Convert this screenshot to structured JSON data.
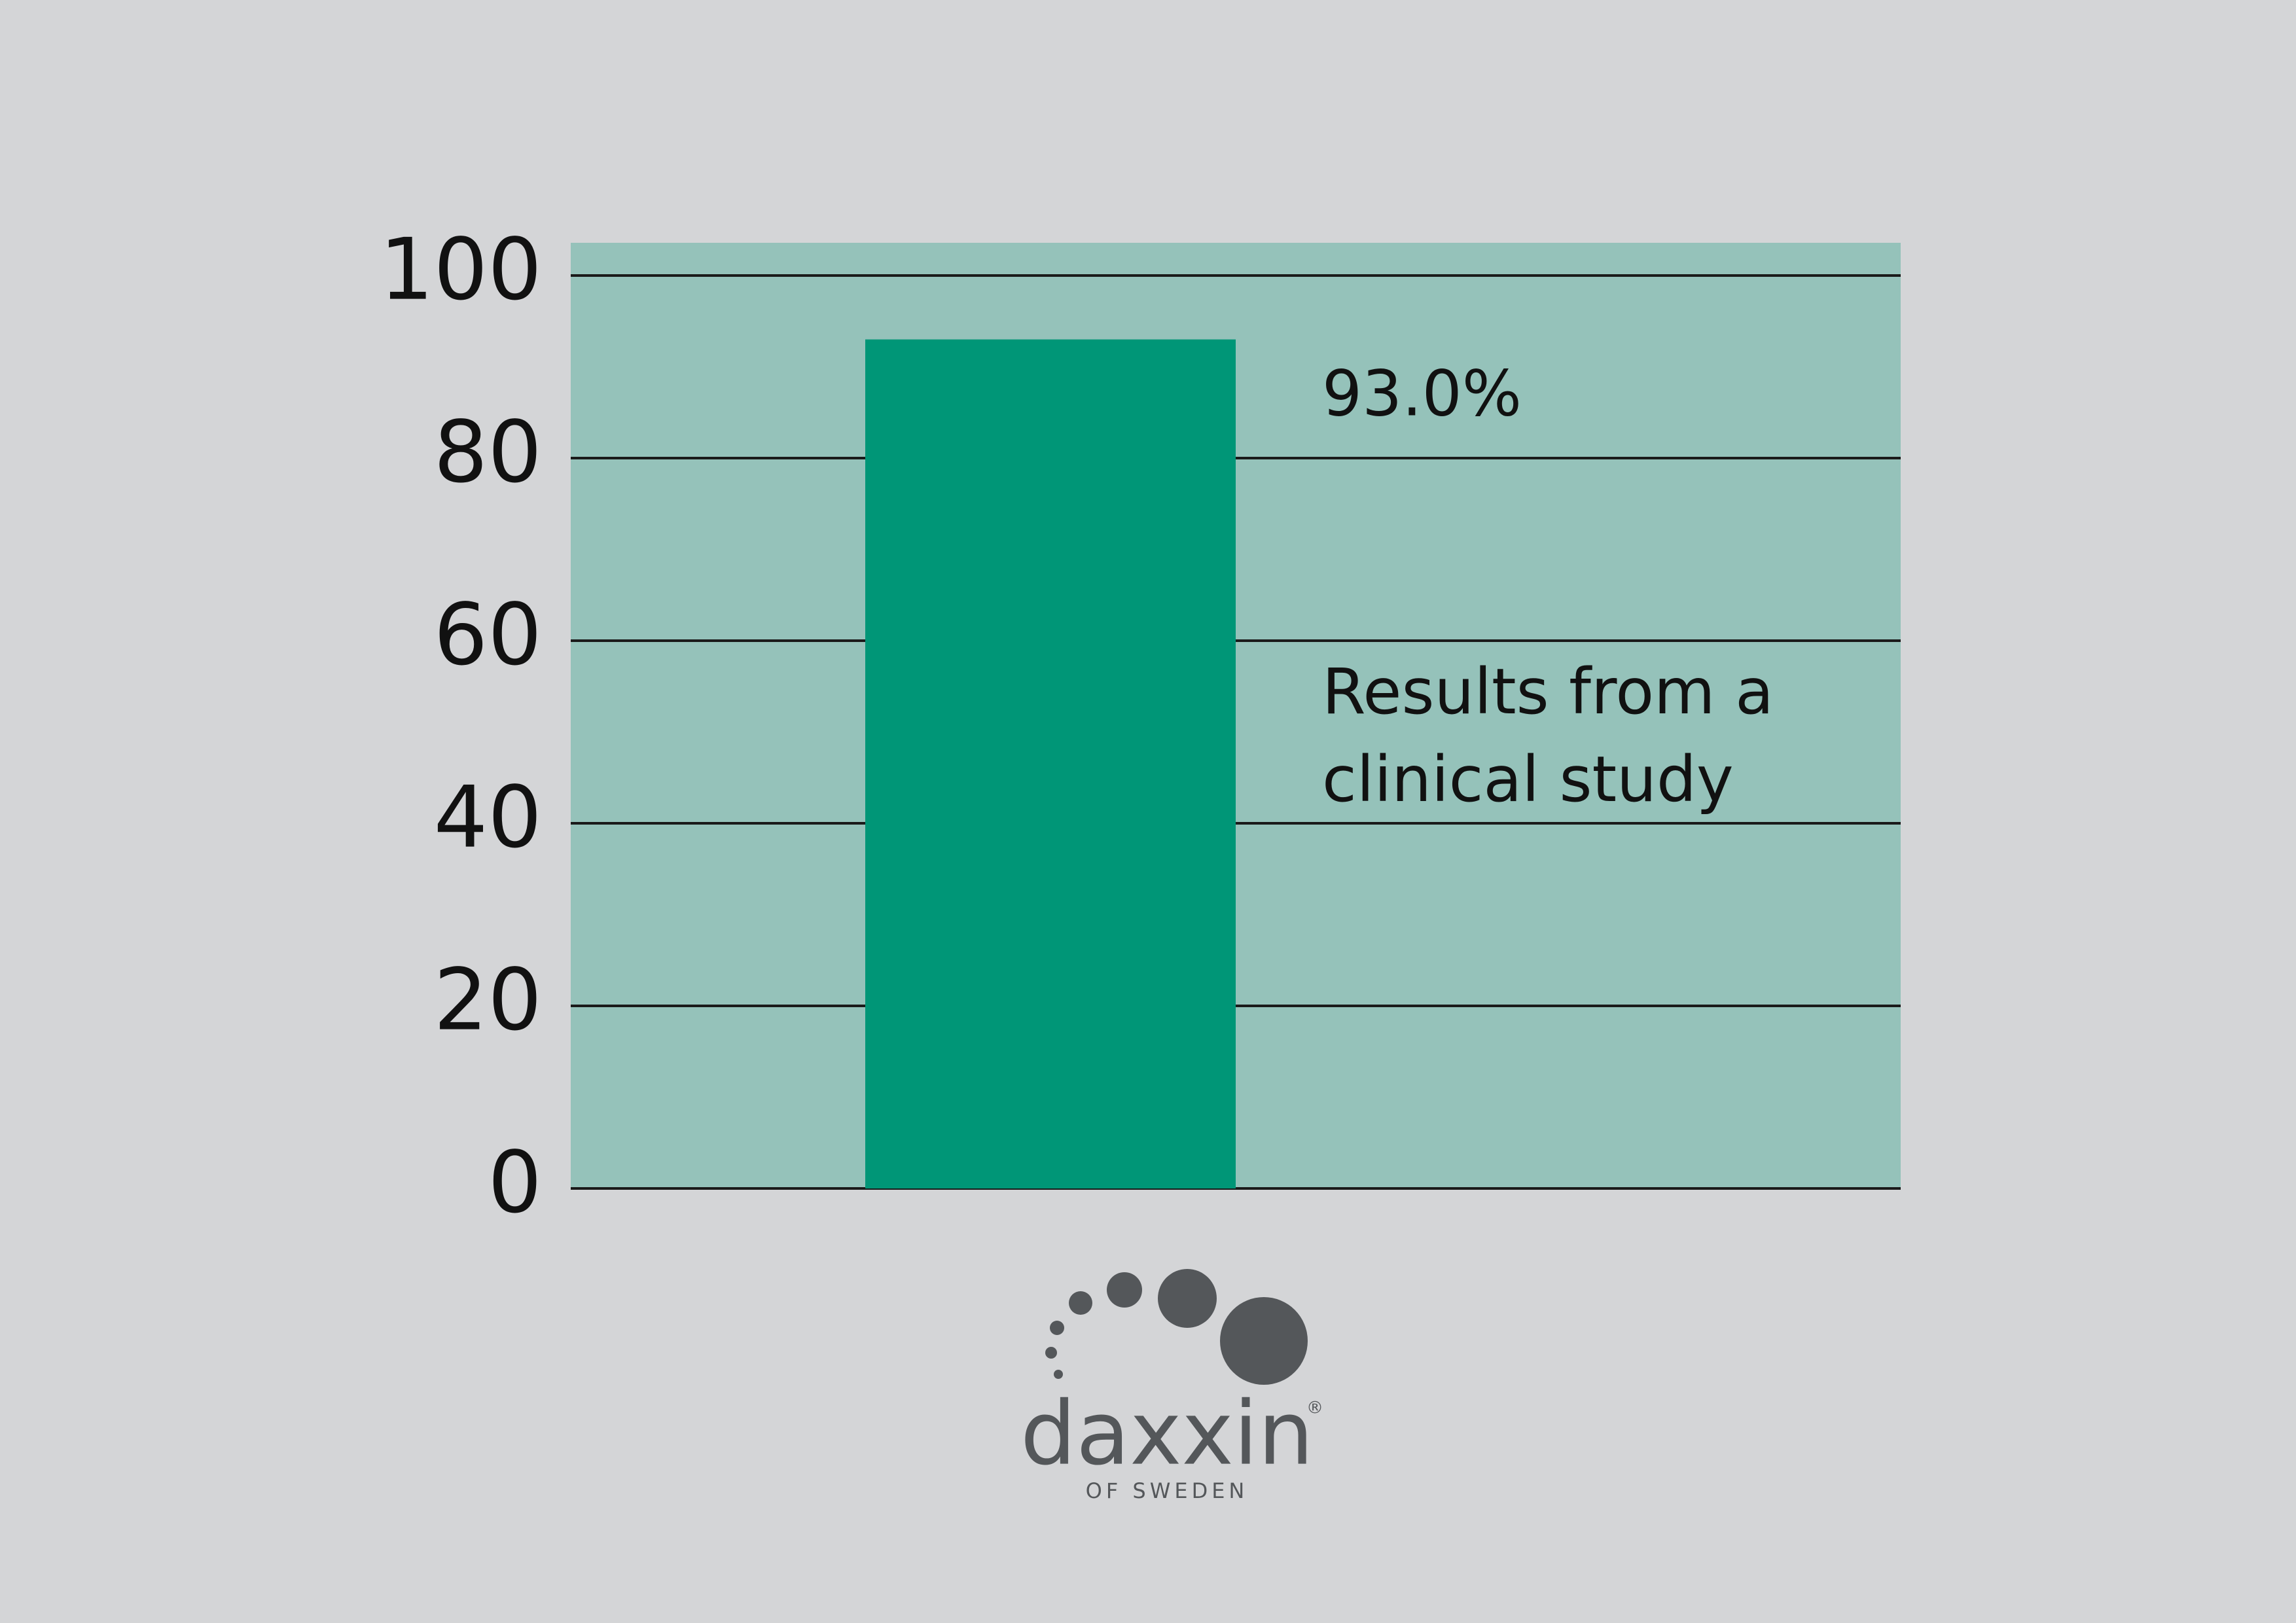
{
  "chart_data": {
    "type": "bar",
    "categories": [
      null
    ],
    "values": [
      93
    ],
    "value_labels": [
      "93.0%"
    ],
    "color": "#009677",
    "ylim": [
      0,
      100
    ],
    "yticks": [
      0,
      20,
      40,
      60,
      80,
      100
    ],
    "grid": true,
    "annotation": "Results from a clinical study"
  },
  "logo": {
    "name": "daxxin",
    "mark": "®",
    "tagline": "OF SWEDEN"
  }
}
